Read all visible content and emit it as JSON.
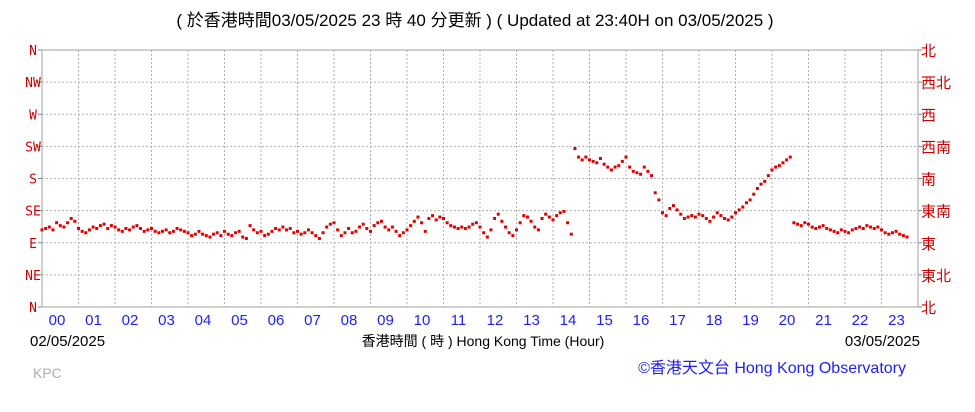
{
  "chart_data": {
    "type": "scatter",
    "title": "( 於香港時間03/05/2025 23 時 40 分更新 ) ( Updated at 23:40H on 03/05/2025 )",
    "xlabel": "香港時間 ( 時 ) Hong Kong Time (Hour)",
    "start_date": "02/05/2025",
    "end_date": "03/05/2025",
    "station": "KPC",
    "credit": "©香港天文台 Hong Kong Observatory",
    "x_ticks": [
      "00",
      "01",
      "02",
      "03",
      "04",
      "05",
      "06",
      "07",
      "08",
      "09",
      "10",
      "11",
      "12",
      "13",
      "14",
      "15",
      "16",
      "17",
      "18",
      "19",
      "20",
      "21",
      "22",
      "23"
    ],
    "y_ticks_left": [
      "N",
      "NW",
      "W",
      "SW",
      "S",
      "SE",
      "E",
      "NE",
      "N"
    ],
    "y_ticks_right": [
      "北",
      "西北",
      "西",
      "西南",
      "南",
      "東南",
      "東",
      "東北",
      "北"
    ],
    "ylim": [
      0,
      360
    ],
    "xlim": [
      0,
      24
    ],
    "grid": true,
    "point_color": "#e00000",
    "series": [
      {
        "values": [
          [
            0.0,
            108
          ],
          [
            0.1,
            110
          ],
          [
            0.2,
            112
          ],
          [
            0.3,
            108
          ],
          [
            0.4,
            118
          ],
          [
            0.5,
            114
          ],
          [
            0.6,
            112
          ],
          [
            0.7,
            118
          ],
          [
            0.8,
            124
          ],
          [
            0.9,
            120
          ],
          [
            1.0,
            110
          ],
          [
            1.1,
            106
          ],
          [
            1.2,
            104
          ],
          [
            1.3,
            108
          ],
          [
            1.4,
            112
          ],
          [
            1.5,
            110
          ],
          [
            1.6,
            114
          ],
          [
            1.7,
            116
          ],
          [
            1.8,
            110
          ],
          [
            1.9,
            114
          ],
          [
            2.0,
            112
          ],
          [
            2.1,
            108
          ],
          [
            2.2,
            106
          ],
          [
            2.3,
            110
          ],
          [
            2.4,
            108
          ],
          [
            2.5,
            112
          ],
          [
            2.6,
            114
          ],
          [
            2.7,
            110
          ],
          [
            2.8,
            106
          ],
          [
            2.9,
            108
          ],
          [
            3.0,
            110
          ],
          [
            3.1,
            106
          ],
          [
            3.2,
            104
          ],
          [
            3.3,
            106
          ],
          [
            3.4,
            108
          ],
          [
            3.5,
            104
          ],
          [
            3.6,
            106
          ],
          [
            3.7,
            110
          ],
          [
            3.8,
            108
          ],
          [
            3.9,
            106
          ],
          [
            4.0,
            104
          ],
          [
            4.1,
            100
          ],
          [
            4.2,
            102
          ],
          [
            4.3,
            106
          ],
          [
            4.4,
            102
          ],
          [
            4.5,
            100
          ],
          [
            4.6,
            98
          ],
          [
            4.7,
            102
          ],
          [
            4.8,
            104
          ],
          [
            4.9,
            100
          ],
          [
            5.0,
            106
          ],
          [
            5.1,
            102
          ],
          [
            5.2,
            100
          ],
          [
            5.3,
            104
          ],
          [
            5.4,
            106
          ],
          [
            5.5,
            98
          ],
          [
            5.6,
            96
          ],
          [
            5.7,
            114
          ],
          [
            5.8,
            108
          ],
          [
            5.9,
            104
          ],
          [
            6.0,
            106
          ],
          [
            6.1,
            100
          ],
          [
            6.2,
            102
          ],
          [
            6.3,
            106
          ],
          [
            6.4,
            110
          ],
          [
            6.5,
            108
          ],
          [
            6.6,
            112
          ],
          [
            6.7,
            108
          ],
          [
            6.8,
            110
          ],
          [
            6.9,
            104
          ],
          [
            7.0,
            106
          ],
          [
            7.1,
            102
          ],
          [
            7.2,
            104
          ],
          [
            7.3,
            108
          ],
          [
            7.4,
            104
          ],
          [
            7.5,
            100
          ],
          [
            7.6,
            96
          ],
          [
            7.7,
            104
          ],
          [
            7.8,
            112
          ],
          [
            7.9,
            116
          ],
          [
            8.0,
            118
          ],
          [
            8.1,
            108
          ],
          [
            8.2,
            100
          ],
          [
            8.3,
            104
          ],
          [
            8.4,
            110
          ],
          [
            8.5,
            104
          ],
          [
            8.6,
            106
          ],
          [
            8.7,
            112
          ],
          [
            8.8,
            116
          ],
          [
            8.9,
            110
          ],
          [
            9.0,
            106
          ],
          [
            9.1,
            114
          ],
          [
            9.2,
            118
          ],
          [
            9.3,
            120
          ],
          [
            9.4,
            112
          ],
          [
            9.5,
            108
          ],
          [
            9.6,
            112
          ],
          [
            9.7,
            106
          ],
          [
            9.8,
            100
          ],
          [
            9.9,
            104
          ],
          [
            10.0,
            108
          ],
          [
            10.1,
            114
          ],
          [
            10.2,
            120
          ],
          [
            10.3,
            126
          ],
          [
            10.4,
            118
          ],
          [
            10.5,
            106
          ],
          [
            10.6,
            124
          ],
          [
            10.7,
            128
          ],
          [
            10.8,
            122
          ],
          [
            10.9,
            126
          ],
          [
            11.0,
            124
          ],
          [
            11.1,
            118
          ],
          [
            11.2,
            114
          ],
          [
            11.3,
            112
          ],
          [
            11.4,
            110
          ],
          [
            11.5,
            112
          ],
          [
            11.6,
            110
          ],
          [
            11.7,
            112
          ],
          [
            11.8,
            116
          ],
          [
            11.9,
            118
          ],
          [
            12.0,
            112
          ],
          [
            12.1,
            104
          ],
          [
            12.2,
            98
          ],
          [
            12.3,
            108
          ],
          [
            12.4,
            124
          ],
          [
            12.5,
            130
          ],
          [
            12.6,
            120
          ],
          [
            12.7,
            112
          ],
          [
            12.8,
            104
          ],
          [
            12.9,
            100
          ],
          [
            13.0,
            108
          ],
          [
            13.1,
            118
          ],
          [
            13.2,
            128
          ],
          [
            13.3,
            126
          ],
          [
            13.4,
            120
          ],
          [
            13.5,
            112
          ],
          [
            13.6,
            108
          ],
          [
            13.7,
            124
          ],
          [
            13.8,
            130
          ],
          [
            13.9,
            126
          ],
          [
            14.0,
            122
          ],
          [
            14.1,
            128
          ],
          [
            14.2,
            132
          ],
          [
            14.3,
            134
          ],
          [
            14.4,
            118
          ],
          [
            14.5,
            102
          ],
          [
            14.6,
            222
          ],
          [
            14.7,
            210
          ],
          [
            14.8,
            206
          ],
          [
            14.9,
            210
          ],
          [
            15.0,
            206
          ],
          [
            15.1,
            204
          ],
          [
            15.2,
            202
          ],
          [
            15.3,
            208
          ],
          [
            15.4,
            200
          ],
          [
            15.5,
            196
          ],
          [
            15.6,
            192
          ],
          [
            15.7,
            196
          ],
          [
            15.8,
            198
          ],
          [
            15.9,
            204
          ],
          [
            16.0,
            210
          ],
          [
            16.1,
            196
          ],
          [
            16.2,
            190
          ],
          [
            16.3,
            188
          ],
          [
            16.4,
            186
          ],
          [
            16.5,
            196
          ],
          [
            16.6,
            190
          ],
          [
            16.7,
            184
          ],
          [
            16.8,
            160
          ],
          [
            16.9,
            150
          ],
          [
            17.0,
            132
          ],
          [
            17.1,
            128
          ],
          [
            17.2,
            138
          ],
          [
            17.3,
            142
          ],
          [
            17.4,
            136
          ],
          [
            17.5,
            130
          ],
          [
            17.6,
            124
          ],
          [
            17.7,
            126
          ],
          [
            17.8,
            128
          ],
          [
            17.9,
            126
          ],
          [
            18.0,
            130
          ],
          [
            18.1,
            128
          ],
          [
            18.2,
            124
          ],
          [
            18.3,
            120
          ],
          [
            18.4,
            126
          ],
          [
            18.5,
            132
          ],
          [
            18.6,
            128
          ],
          [
            18.7,
            124
          ],
          [
            18.8,
            122
          ],
          [
            18.9,
            126
          ],
          [
            19.0,
            132
          ],
          [
            19.1,
            136
          ],
          [
            19.2,
            140
          ],
          [
            19.3,
            146
          ],
          [
            19.4,
            150
          ],
          [
            19.5,
            158
          ],
          [
            19.6,
            166
          ],
          [
            19.7,
            172
          ],
          [
            19.8,
            176
          ],
          [
            19.9,
            184
          ],
          [
            20.0,
            192
          ],
          [
            20.1,
            196
          ],
          [
            20.2,
            198
          ],
          [
            20.3,
            202
          ],
          [
            20.4,
            206
          ],
          [
            20.5,
            210
          ],
          [
            20.6,
            118
          ],
          [
            20.7,
            116
          ],
          [
            20.8,
            114
          ],
          [
            20.9,
            118
          ],
          [
            21.0,
            116
          ],
          [
            21.1,
            112
          ],
          [
            21.2,
            110
          ],
          [
            21.3,
            112
          ],
          [
            21.4,
            114
          ],
          [
            21.5,
            110
          ],
          [
            21.6,
            108
          ],
          [
            21.7,
            106
          ],
          [
            21.8,
            104
          ],
          [
            21.9,
            108
          ],
          [
            22.0,
            106
          ],
          [
            22.1,
            104
          ],
          [
            22.2,
            108
          ],
          [
            22.3,
            110
          ],
          [
            22.4,
            112
          ],
          [
            22.5,
            110
          ],
          [
            22.6,
            114
          ],
          [
            22.7,
            112
          ],
          [
            22.8,
            110
          ],
          [
            22.9,
            112
          ],
          [
            23.0,
            108
          ],
          [
            23.1,
            104
          ],
          [
            23.2,
            102
          ],
          [
            23.3,
            104
          ],
          [
            23.4,
            106
          ],
          [
            23.5,
            102
          ],
          [
            23.6,
            100
          ],
          [
            23.7,
            98
          ]
        ]
      }
    ]
  }
}
